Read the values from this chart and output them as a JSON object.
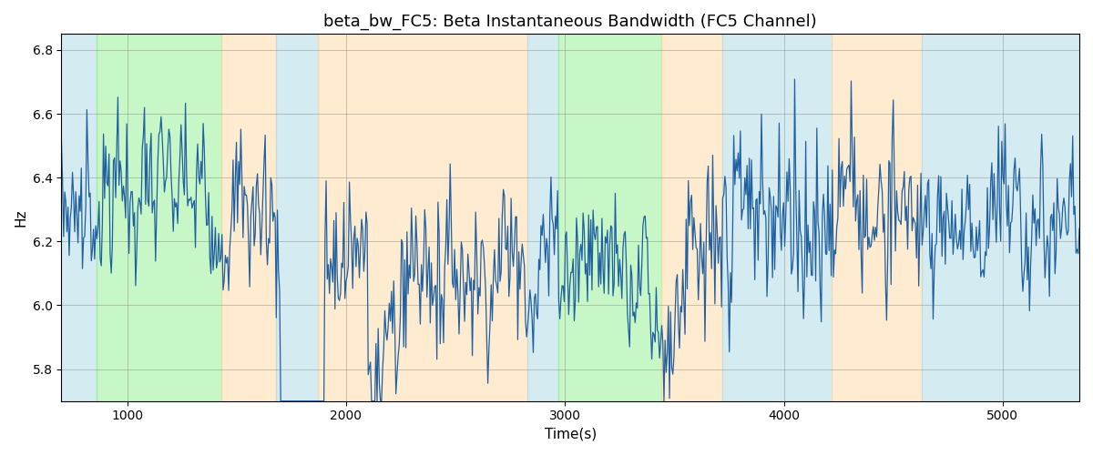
{
  "title": "beta_bw_FC5: Beta Instantaneous Bandwidth (FC5 Channel)",
  "xlabel": "Time(s)",
  "ylabel": "Hz",
  "xlim": [
    700,
    5350
  ],
  "ylim": [
    5.7,
    6.85
  ],
  "yticks": [
    5.8,
    6.0,
    6.2,
    6.4,
    6.6,
    6.8
  ],
  "xticks": [
    1000,
    2000,
    3000,
    4000,
    5000
  ],
  "line_color": "#2060a0",
  "line_width": 0.9,
  "bands": [
    {
      "xmin": 700,
      "xmax": 860,
      "color": "#add8e6",
      "alpha": 0.5
    },
    {
      "xmin": 860,
      "xmax": 1430,
      "color": "#90ee90",
      "alpha": 0.5
    },
    {
      "xmin": 1430,
      "xmax": 1680,
      "color": "#ffd9a0",
      "alpha": 0.5
    },
    {
      "xmin": 1680,
      "xmax": 1870,
      "color": "#add8e6",
      "alpha": 0.5
    },
    {
      "xmin": 1870,
      "xmax": 2830,
      "color": "#ffd9a0",
      "alpha": 0.5
    },
    {
      "xmin": 2830,
      "xmax": 2970,
      "color": "#add8e6",
      "alpha": 0.5
    },
    {
      "xmin": 2970,
      "xmax": 3440,
      "color": "#90ee90",
      "alpha": 0.5
    },
    {
      "xmin": 3440,
      "xmax": 3720,
      "color": "#ffd9a0",
      "alpha": 0.5
    },
    {
      "xmin": 3720,
      "xmax": 4220,
      "color": "#add8e6",
      "alpha": 0.5
    },
    {
      "xmin": 4220,
      "xmax": 4630,
      "color": "#ffd9a0",
      "alpha": 0.5
    },
    {
      "xmin": 4630,
      "xmax": 5350,
      "color": "#add8e6",
      "alpha": 0.5
    }
  ],
  "seed": 7,
  "n_points": 920,
  "t_start": 700,
  "t_end": 5350,
  "figsize": [
    12,
    5
  ],
  "dpi": 100
}
